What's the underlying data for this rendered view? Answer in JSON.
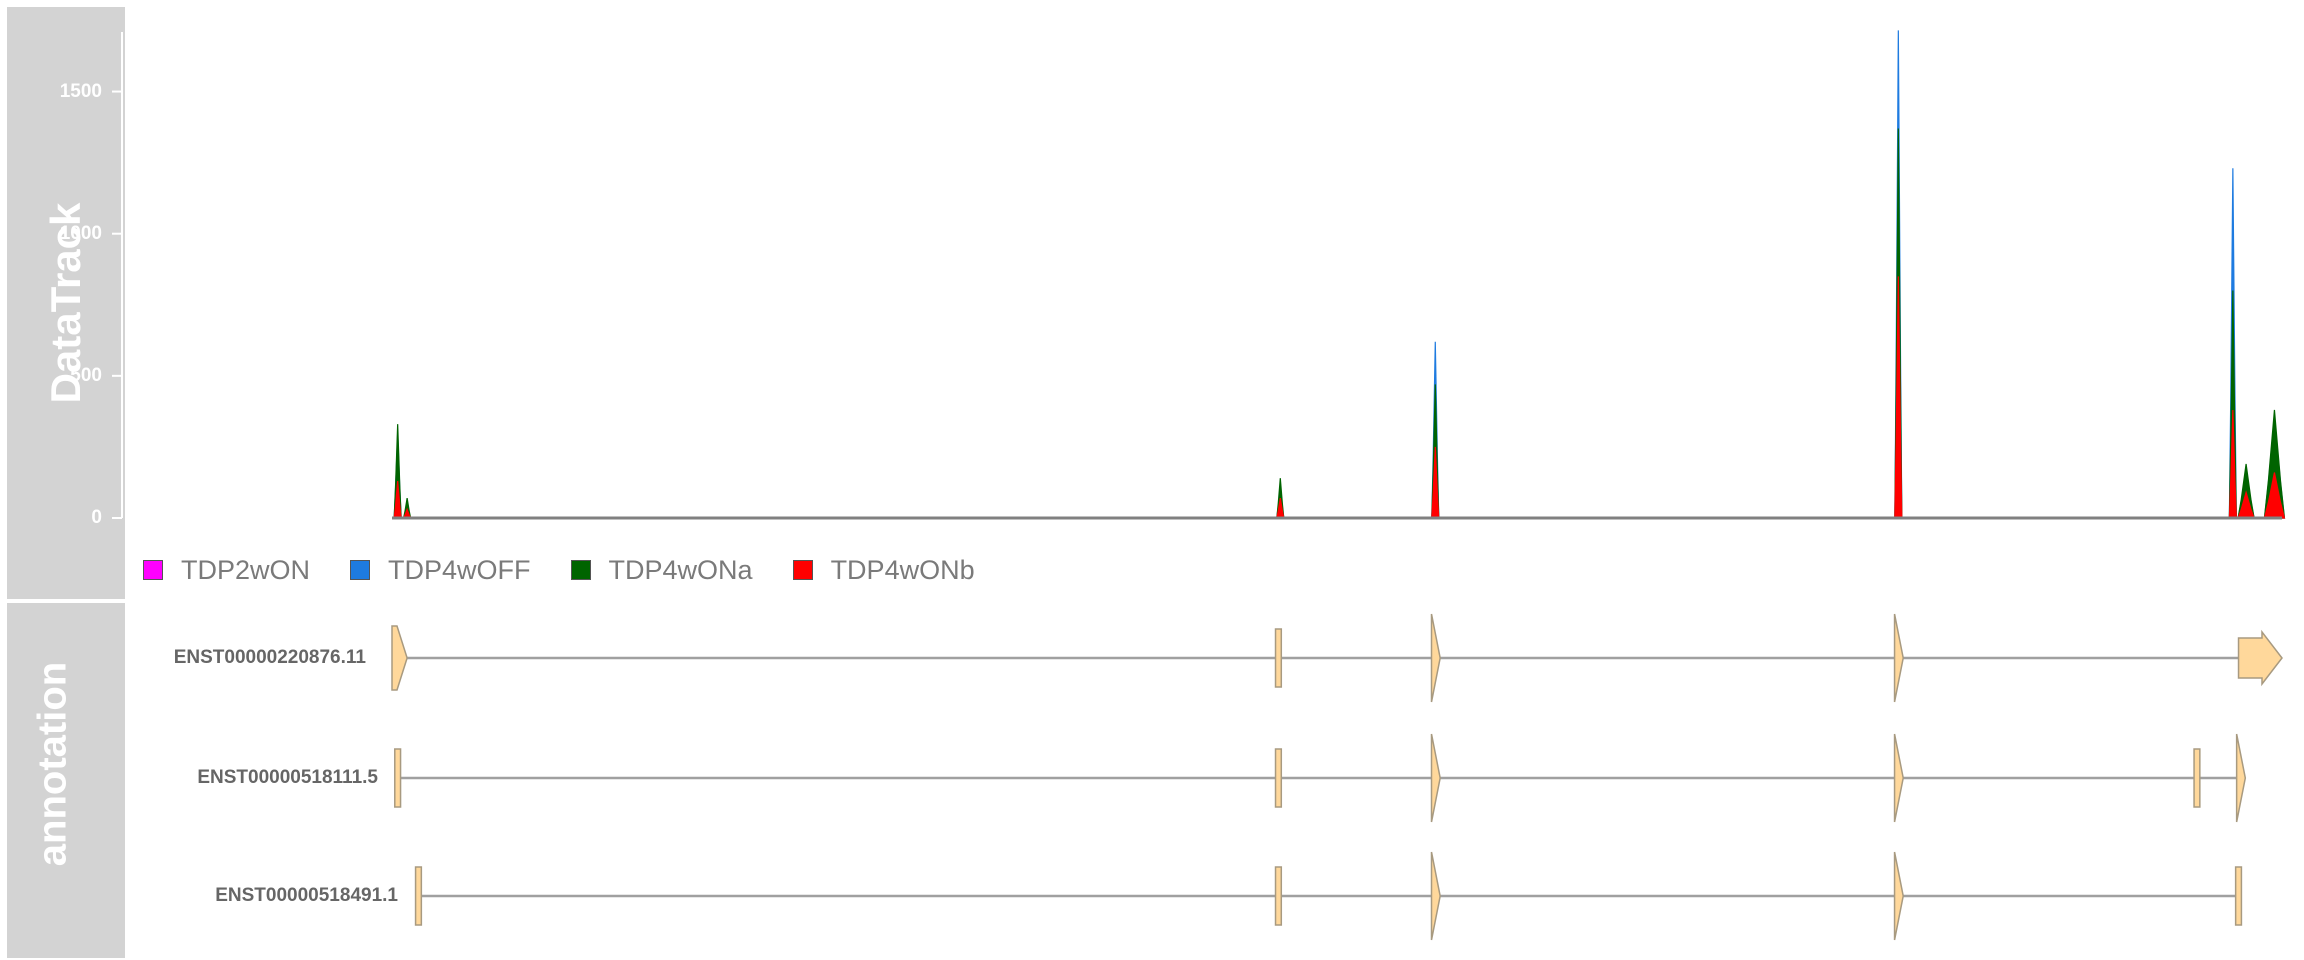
{
  "panels": {
    "data_title": "DataTrack",
    "annotation_title": "annotation"
  },
  "colors": {
    "panel_bg": "#d3d3d3",
    "TDP2wON": "#ff00ff",
    "TDP4wOFF": "#1e7be0",
    "TDP4wONa": "#006400",
    "TDP4wONb": "#ff0000",
    "exon_fill": "#ffd89b",
    "exon_stroke": "#a89a80",
    "intron": "#a0a0a0"
  },
  "chart_data": {
    "type": "area",
    "ylim": [
      0,
      1720
    ],
    "y_ticks": [
      "0",
      "500",
      "1000",
      "1500"
    ],
    "legend_placement": "bottom-left",
    "series": [
      {
        "name": "TDP2wON",
        "color": "#ff00ff",
        "peaks": []
      },
      {
        "name": "TDP4wOFF",
        "color": "#1e7be0",
        "peaks": [
          {
            "x": 0.003,
            "y": 300
          },
          {
            "x": 0.47,
            "y": 110
          },
          {
            "x": 0.552,
            "y": 620
          },
          {
            "x": 0.797,
            "y": 1715
          },
          {
            "x": 0.974,
            "y": 1230
          },
          {
            "x": 0.981,
            "y": 170
          },
          {
            "x": 0.996,
            "y": 360
          }
        ]
      },
      {
        "name": "TDP4wONa",
        "color": "#006400",
        "peaks": [
          {
            "x": 0.003,
            "y": 330
          },
          {
            "x": 0.008,
            "y": 70
          },
          {
            "x": 0.47,
            "y": 140
          },
          {
            "x": 0.552,
            "y": 470
          },
          {
            "x": 0.797,
            "y": 1370
          },
          {
            "x": 0.974,
            "y": 800
          },
          {
            "x": 0.981,
            "y": 190
          },
          {
            "x": 0.996,
            "y": 380
          }
        ]
      },
      {
        "name": "TDP4wONb",
        "color": "#ff0000",
        "peaks": [
          {
            "x": 0.003,
            "y": 130
          },
          {
            "x": 0.008,
            "y": 30
          },
          {
            "x": 0.47,
            "y": 70
          },
          {
            "x": 0.552,
            "y": 250
          },
          {
            "x": 0.797,
            "y": 850
          },
          {
            "x": 0.974,
            "y": 380
          },
          {
            "x": 0.981,
            "y": 90
          },
          {
            "x": 0.996,
            "y": 160
          }
        ]
      }
    ]
  },
  "transcripts": [
    {
      "name": "ENST00000220876.11",
      "intron": [
        0.0,
        1.0
      ],
      "exons": [
        {
          "type": "arrow",
          "start": 0.0,
          "end": 0.008
        },
        {
          "type": "bar",
          "start": 0.468,
          "end": 0.47
        },
        {
          "type": "arrow",
          "start": 0.55,
          "end": 0.553
        },
        {
          "type": "arrow",
          "start": 0.795,
          "end": 0.798
        },
        {
          "type": "bigarrow",
          "start": 0.977,
          "end": 1.0
        }
      ]
    },
    {
      "name": "ENST00000518111.5",
      "intron": [
        0.002,
        0.979
      ],
      "exons": [
        {
          "type": "bar",
          "start": 0.002,
          "end": 0.004
        },
        {
          "type": "bar",
          "start": 0.468,
          "end": 0.47
        },
        {
          "type": "arrow",
          "start": 0.55,
          "end": 0.553
        },
        {
          "type": "arrow",
          "start": 0.795,
          "end": 0.798
        },
        {
          "type": "bar",
          "start": 0.954,
          "end": 0.956
        },
        {
          "type": "arrow",
          "start": 0.976,
          "end": 0.979
        }
      ]
    },
    {
      "name": "ENST00000518491.1",
      "intron": [
        0.013,
        0.978
      ],
      "exons": [
        {
          "type": "bar",
          "start": 0.013,
          "end": 0.015
        },
        {
          "type": "bar",
          "start": 0.468,
          "end": 0.47
        },
        {
          "type": "arrow",
          "start": 0.55,
          "end": 0.553
        },
        {
          "type": "arrow",
          "start": 0.795,
          "end": 0.798
        },
        {
          "type": "bar",
          "start": 0.976,
          "end": 0.978
        }
      ]
    }
  ]
}
